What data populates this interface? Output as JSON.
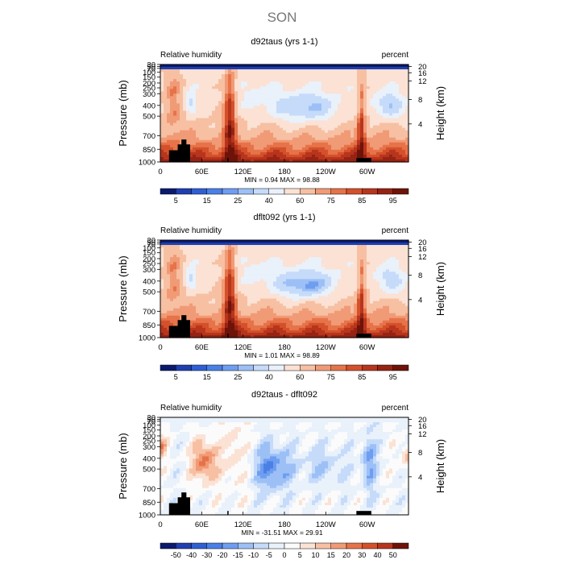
{
  "figure": {
    "title": "SON"
  },
  "chart_data": [
    {
      "type": "heatmap",
      "title": "d92taus (yrs 1-1)",
      "left_label": "Relative humidity",
      "right_label": "percent",
      "ylabel": "Pressure (mb)",
      "ylabel_right": "Height (km)",
      "x_ticks": [
        "0",
        "60E",
        "120E",
        "180",
        "120W",
        "60W"
      ],
      "y_ticks": [
        "1000",
        "850",
        "700",
        "500",
        "400",
        "300",
        "250",
        "200",
        "150",
        "100",
        "70",
        "50",
        "30"
      ],
      "y_ticks_right": [
        "20",
        "16",
        "12",
        "8",
        "4"
      ],
      "stats": {
        "min_label": "MIN =",
        "min": "0.94",
        "max_label": "MAX =",
        "max": "98.88"
      },
      "colorbar_labels": [
        "5",
        "15",
        "25",
        "40",
        "60",
        "75",
        "85",
        "95"
      ],
      "colorbar_colors": [
        "#0a1a6e",
        "#1f3fb0",
        "#2f5fd2",
        "#4a80e6",
        "#6f9df0",
        "#9cc0f6",
        "#c6dbfa",
        "#e9f1fb",
        "#fbe2d4",
        "#f7c0a3",
        "#f19a76",
        "#e67349",
        "#d4512b",
        "#b8351d",
        "#962313",
        "#6e1309"
      ],
      "colormap": "relative-humidity"
    },
    {
      "type": "heatmap",
      "title": "dflt092 (yrs 1-1)",
      "left_label": "Relative humidity",
      "right_label": "percent",
      "ylabel": "Pressure (mb)",
      "ylabel_right": "Height (km)",
      "x_ticks": [
        "0",
        "60E",
        "120E",
        "180",
        "120W",
        "60W"
      ],
      "y_ticks": [
        "1000",
        "850",
        "700",
        "500",
        "400",
        "300",
        "250",
        "200",
        "150",
        "100",
        "70",
        "50",
        "30"
      ],
      "y_ticks_right": [
        "20",
        "16",
        "12",
        "8",
        "4"
      ],
      "stats": {
        "min_label": "MIN =",
        "min": "1.01",
        "max_label": "MAX =",
        "max": "98.89"
      },
      "colorbar_labels": [
        "5",
        "15",
        "25",
        "40",
        "60",
        "75",
        "85",
        "95"
      ],
      "colorbar_colors": [
        "#0a1a6e",
        "#1f3fb0",
        "#2f5fd2",
        "#4a80e6",
        "#6f9df0",
        "#9cc0f6",
        "#c6dbfa",
        "#e9f1fb",
        "#fbe2d4",
        "#f7c0a3",
        "#f19a76",
        "#e67349",
        "#d4512b",
        "#b8351d",
        "#962313",
        "#6e1309"
      ],
      "colormap": "relative-humidity"
    },
    {
      "type": "heatmap",
      "title": "d92taus - dflt092",
      "left_label": "Relative humidity",
      "right_label": "percent",
      "ylabel": "Pressure (mb)",
      "ylabel_right": "Height (km)",
      "x_ticks": [
        "0",
        "60E",
        "120E",
        "180",
        "120W",
        "60W"
      ],
      "y_ticks": [
        "1000",
        "850",
        "700",
        "500",
        "400",
        "300",
        "250",
        "200",
        "150",
        "100",
        "70",
        "50",
        "30"
      ],
      "y_ticks_right": [
        "20",
        "16",
        "12",
        "8",
        "4"
      ],
      "stats": {
        "min_label": "MIN =",
        "min": "-31.51",
        "max_label": "MAX =",
        "max": "29.91"
      },
      "colorbar_labels": [
        "-50",
        "-40",
        "-30",
        "-20",
        "-15",
        "-10",
        "-5",
        "0",
        "5",
        "10",
        "15",
        "20",
        "30",
        "40",
        "50"
      ],
      "colorbar_colors": [
        "#0a1a6e",
        "#1f3fb0",
        "#2f5fd2",
        "#4a80e6",
        "#6f9df0",
        "#9cc0f6",
        "#c6dbfa",
        "#e9f1fb",
        "#fbfbfb",
        "#fbe2d4",
        "#f7c0a3",
        "#f19a76",
        "#e67349",
        "#d4512b",
        "#b8351d",
        "#6e1309"
      ],
      "colormap": "difference"
    }
  ]
}
